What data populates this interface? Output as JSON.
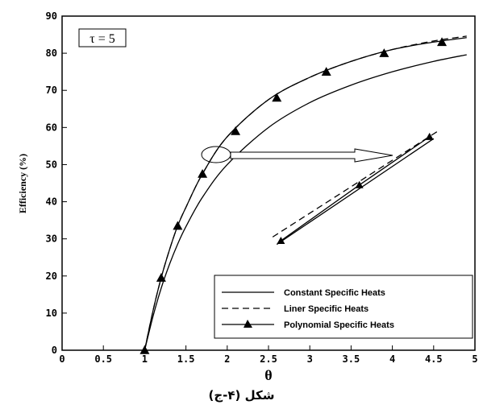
{
  "chart_data": {
    "type": "line",
    "xlabel": "θ",
    "ylabel": "Efficiency (%)",
    "xlim": [
      0,
      5
    ],
    "ylim": [
      0,
      90
    ],
    "xticks": [
      "0",
      "0.5",
      "1",
      "1.5",
      "2",
      "2.5",
      "3",
      "3.5",
      "4",
      "4.5",
      "5"
    ],
    "yticks": [
      "0",
      "10",
      "20",
      "30",
      "40",
      "50",
      "60",
      "70",
      "80",
      "90"
    ],
    "grid": false,
    "legend_position": "bottom-right",
    "annotation": "τ = 5",
    "series": [
      {
        "name": "Constant Specific Heats",
        "style": "solid",
        "x": [
          1.0,
          1.1,
          1.2,
          1.3,
          1.4,
          1.5,
          1.7,
          2.0,
          2.5,
          3.0,
          3.5,
          4.0,
          4.5,
          4.9
        ],
        "y": [
          0,
          9,
          16.7,
          23.1,
          28.6,
          33.3,
          41.2,
          50.0,
          60.0,
          66.7,
          71.4,
          75.0,
          77.8,
          79.6
        ]
      },
      {
        "name": "Liner Specific Heats",
        "style": "dashed",
        "x": [
          1.0,
          1.1,
          1.2,
          1.3,
          1.4,
          1.5,
          1.7,
          2.0,
          2.5,
          3.0,
          3.5,
          4.0,
          4.5,
          4.9
        ],
        "y": [
          0,
          10.5,
          19.5,
          27,
          33.5,
          38.5,
          47.5,
          57.5,
          67.5,
          73.5,
          77.8,
          81.0,
          83.3,
          84.6
        ]
      },
      {
        "name": "Polynomial Specific Heats",
        "style": "solid-triangle",
        "x": [
          1.0,
          1.1,
          1.2,
          1.3,
          1.4,
          1.5,
          1.7,
          2.0,
          2.5,
          3.0,
          3.5,
          4.0,
          4.5,
          4.9
        ],
        "y": [
          0,
          10.5,
          19.5,
          27,
          33.5,
          38.5,
          47.5,
          57.5,
          67.5,
          73.5,
          77.8,
          81.0,
          83.0,
          84.2
        ],
        "markers": {
          "x": [
            1.0,
            1.2,
            1.4,
            1.7,
            2.1,
            2.6,
            3.2,
            3.9,
            4.6
          ],
          "y": [
            0,
            19.5,
            33.5,
            47.5,
            59,
            68,
            75,
            80,
            83
          ]
        }
      }
    ],
    "inset": {
      "note": "zoom of the region around x≈1.9, y≈52",
      "series": [
        {
          "name": "Constant Specific Heats",
          "style": "solid",
          "x": [
            2.6,
            4.5
          ],
          "y": [
            28.5,
            57
          ]
        },
        {
          "name": "Liner Specific Heats",
          "style": "dashed",
          "x": [
            2.55,
            4.55
          ],
          "y": [
            30.5,
            59
          ]
        },
        {
          "name": "Polynomial Specific Heats",
          "style": "solid-triangle",
          "x": [
            2.65,
            3.6,
            4.45
          ],
          "y": [
            29.5,
            44.5,
            57.5
          ]
        }
      ]
    }
  },
  "caption": "شکل (۴-ج)"
}
